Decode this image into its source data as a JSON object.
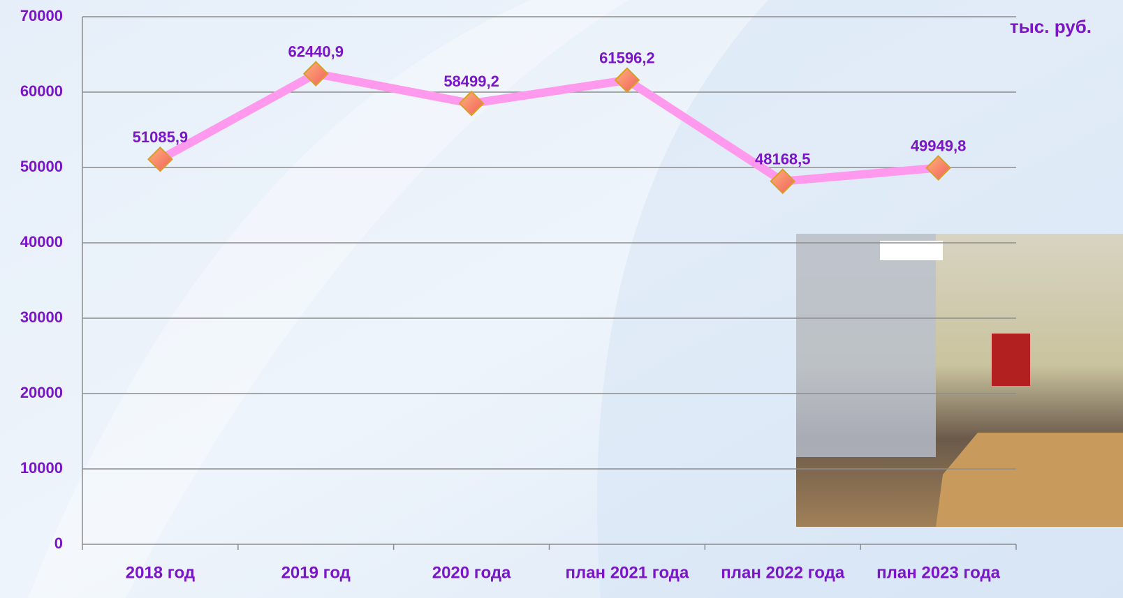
{
  "chart_data": {
    "type": "line",
    "annotation": "тыс. руб.",
    "categories": [
      "2018 год",
      "2019 год",
      "2020 года",
      "план 2021 года",
      "план 2022 года",
      "план 2023 года"
    ],
    "series": [
      {
        "color": "#ff99ee",
        "marker_color": "#f47a6a",
        "values": [
          51085.9,
          62440.9,
          58499.2,
          61596.2,
          48168.5,
          49949.8
        ],
        "value_labels": [
          "51085,9",
          "62440,9",
          "58499,2",
          "61596,2",
          "48168,5",
          "49949,8"
        ]
      }
    ],
    "ylim": [
      0,
      70000
    ],
    "yticks": [
      0,
      10000,
      20000,
      30000,
      40000,
      50000,
      60000,
      70000
    ],
    "grid": true
  }
}
